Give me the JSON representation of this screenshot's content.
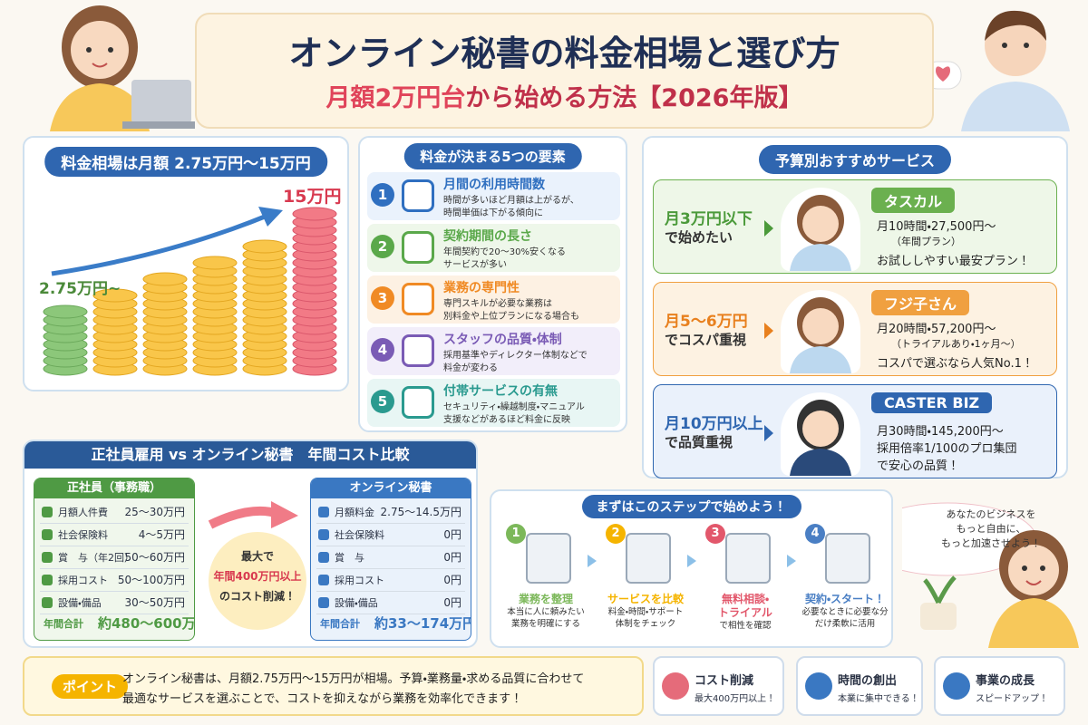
{
  "header": {
    "title": "オンライン秘書の料金相場と選び方",
    "subtitle_highlight": "月額2万円台",
    "subtitle_rest": "から始める方法【2026年版】"
  },
  "price_range": {
    "heading": "料金相場は月額 2.75万円〜15万円",
    "min_label": "2.75万円~",
    "max_label": "15万円"
  },
  "factors": {
    "heading": "料金が決まる5つの要素",
    "items": [
      {
        "number": "1",
        "title": "月間の利用時間数",
        "desc": [
          "時間が多いほど月額は上がるが、",
          "時間単価は下がる傾向に"
        ]
      },
      {
        "number": "2",
        "title": "契約期間の長さ",
        "desc": [
          "年間契約で20～30%安くなる",
          "サービスが多い"
        ]
      },
      {
        "number": "3",
        "title": "業務の専門性",
        "desc": [
          "専門スキルが必要な業務は",
          "別料金や上位プランになる場合も"
        ]
      },
      {
        "number": "4",
        "title": "スタッフの品質・体制",
        "desc": [
          "採用基準やディレクター体制などで",
          "料金が変わる"
        ]
      },
      {
        "number": "5",
        "title": "付帯サービスの有無",
        "desc": [
          "セキュリティ・繰越制度・マニュアル",
          "支援などがあるほど料金に反映"
        ]
      }
    ]
  },
  "services": {
    "heading": "予算別おすすめサービス",
    "items": [
      {
        "budget": [
          "月3万円以下",
          "で始めたい"
        ],
        "name": "タスカル",
        "details": [
          "月10時間・27,500円～",
          "（年間プラン）",
          "お試ししやすい最安プラン！"
        ]
      },
      {
        "budget": [
          "月5～6万円",
          "でコスパ重視"
        ],
        "name": "フジ子さん",
        "details": [
          "月20時間・57,200円～",
          "（トライアルあり・1ヶ月～）",
          "コスパで選ぶなら人気No.1！"
        ]
      },
      {
        "budget": [
          "月10万円以上",
          "で品質重視"
        ],
        "name": "CASTER BIZ",
        "details": [
          "月30時間・145,200円～",
          "採用倍率1/100のプロ集団",
          "で安心の品質！"
        ]
      }
    ]
  },
  "comparison": {
    "heading": "正社員雇用 vs オンライン秘書　年間コスト比較",
    "employee": {
      "title": "正社員（事務職）",
      "rows": [
        [
          "月額人件費",
          "25～30万円"
        ],
        [
          "社会保険料",
          "4～5万円"
        ],
        [
          "賞　与（年2回）",
          "50～60万円"
        ],
        [
          "採用コスト",
          "50～100万円"
        ],
        [
          "設備・備品",
          "30～50万円"
        ]
      ],
      "total": [
        "年間合計",
        "約480～600万円"
      ]
    },
    "secretary": {
      "title": "オンライン秘書",
      "rows": [
        [
          "月額料金",
          "2.75～14.5万円"
        ],
        [
          "社会保険料",
          "0円"
        ],
        [
          "賞　与",
          "0円"
        ],
        [
          "採用コスト",
          "0円"
        ],
        [
          "設備・備品",
          "0円"
        ]
      ],
      "total": [
        "年間合計",
        "約33～174万円"
      ]
    },
    "savings": [
      "最大で",
      "年間400万円以上",
      "のコスト削減！"
    ]
  },
  "steps": {
    "heading": "まずはこのステップで始めよう！",
    "items": [
      {
        "number": "1",
        "title": [
          "業務を整理"
        ],
        "desc": [
          "本当に人に頼みたい",
          "業務を明確にする"
        ]
      },
      {
        "number": "2",
        "title": [
          "サービスを比較"
        ],
        "desc": [
          "料金・時間・サポート",
          "体制をチェック"
        ]
      },
      {
        "number": "3",
        "title": [
          "無料相談・",
          "トライアル"
        ],
        "desc": [
          "で相性を確認"
        ]
      },
      {
        "number": "4",
        "title": [
          "契約・スタート！"
        ],
        "desc": [
          "必要なときに必要な分",
          "だけ柔軟に活用"
        ]
      }
    ]
  },
  "speech": [
    "あなたのビジネスを",
    "もっと自由に、",
    "もっと加速させよう！"
  ],
  "footer": {
    "point_label": "ポイント",
    "text": [
      "オンライン秘書は、月額2.75万円～15万円が相場。予算・業務量・求める品質に合わせて",
      "最適なサービスを選ぶことで、コストを抑えながら業務を効率化できます！"
    ],
    "badges": [
      {
        "title": "コスト削減",
        "sub": "最大400万円以上！"
      },
      {
        "title": "時間の創出",
        "sub": "本業に集中できる！"
      },
      {
        "title": "事業の成長",
        "sub": "スピードアップ！"
      }
    ]
  }
}
